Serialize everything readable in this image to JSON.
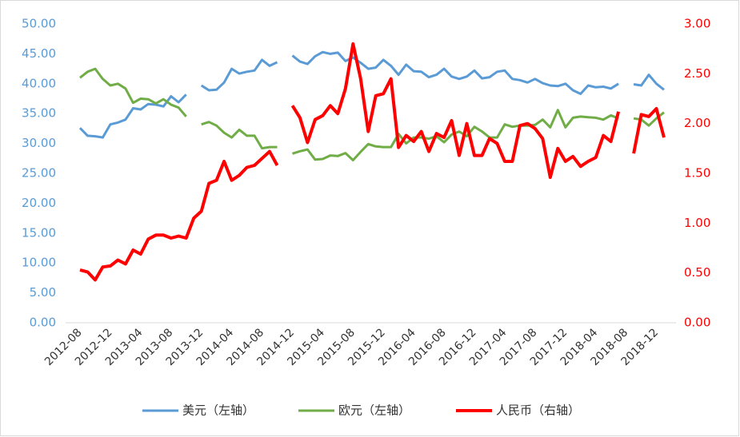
{
  "chart_data": {
    "type": "line",
    "categories": [
      "2012-08",
      null,
      null,
      null,
      "2012-12",
      null,
      null,
      null,
      "2013-04",
      null,
      null,
      null,
      "2013-08",
      null,
      null,
      null,
      "2013-12",
      null,
      null,
      null,
      "2014-04",
      null,
      null,
      null,
      "2014-08",
      null,
      null,
      null,
      "2014-12",
      null,
      null,
      null,
      "2015-04",
      null,
      null,
      null,
      "2015-08",
      null,
      null,
      null,
      "2015-12",
      null,
      null,
      null,
      "2016-04",
      null,
      null,
      null,
      "2016-08",
      null,
      null,
      null,
      "2016-12",
      null,
      null,
      null,
      "2017-04",
      null,
      null,
      null,
      "2017-08",
      null,
      null,
      null,
      "2017-12",
      null,
      null,
      null,
      "2018-04",
      null,
      null,
      null,
      "2018-08",
      null,
      null,
      null,
      "2018-12",
      null
    ],
    "series": [
      {
        "name": "美元（左轴）",
        "color": "#5b9bd5",
        "values": [
          32.6,
          31.3,
          31.2,
          31.0,
          33.2,
          33.5,
          34.0,
          35.9,
          35.7,
          36.6,
          36.5,
          36.2,
          37.9,
          36.9,
          38.2,
          null,
          39.7,
          38.9,
          39.0,
          40.2,
          42.5,
          41.7,
          42.0,
          42.2,
          44.0,
          43.0,
          43.6,
          null,
          44.7,
          43.7,
          43.3,
          44.6,
          45.3,
          45.0,
          45.2,
          43.8,
          44.4,
          43.5,
          42.5,
          42.7,
          44.0,
          43.0,
          41.5,
          43.2,
          42.1,
          42.0,
          41.1,
          41.5,
          42.5,
          41.2,
          40.8,
          41.2,
          42.2,
          40.9,
          41.1,
          42.0,
          42.2,
          40.8,
          40.6,
          40.2,
          40.8,
          40.1,
          39.7,
          39.6,
          40.0,
          38.9,
          38.3,
          39.7,
          39.4,
          39.5,
          39.2,
          40.0,
          null,
          39.9,
          39.7,
          41.5,
          40.0,
          39.0
        ]
      },
      {
        "name": "欧元（左轴）",
        "color": "#70ad47",
        "values": [
          41.0,
          42.0,
          42.5,
          40.8,
          39.7,
          40.0,
          39.2,
          36.8,
          37.5,
          37.4,
          36.7,
          37.4,
          36.5,
          36.0,
          34.5,
          null,
          33.2,
          33.6,
          33.0,
          31.8,
          31.0,
          32.3,
          31.3,
          31.3,
          29.2,
          29.4,
          29.4,
          null,
          28.3,
          28.7,
          29.0,
          27.3,
          27.4,
          28.0,
          27.9,
          28.4,
          27.2,
          28.6,
          29.9,
          29.5,
          29.4,
          29.4,
          31.6,
          30.0,
          31.0,
          31.0,
          30.8,
          31.2,
          30.2,
          31.5,
          32.0,
          31.2,
          32.8,
          32.0,
          31.0,
          31.0,
          33.2,
          32.8,
          33.0,
          33.0,
          33.1,
          34.0,
          32.7,
          35.6,
          32.7,
          34.3,
          34.5,
          34.4,
          34.3,
          34.0,
          34.7,
          34.2,
          null,
          34.2,
          34.0,
          33.0,
          34.2,
          35.2
        ]
      },
      {
        "name": "人民币（右轴）",
        "color": "#ff0000",
        "axis": "y2",
        "values": [
          0.53,
          0.51,
          0.43,
          0.56,
          0.57,
          0.63,
          0.59,
          0.73,
          0.69,
          0.84,
          0.88,
          0.88,
          0.85,
          0.87,
          0.85,
          1.05,
          1.12,
          1.4,
          1.43,
          1.62,
          1.43,
          1.48,
          1.56,
          1.58,
          1.65,
          1.72,
          1.58,
          null,
          2.18,
          2.06,
          1.81,
          2.04,
          2.08,
          2.18,
          2.1,
          2.35,
          2.8,
          2.45,
          1.92,
          2.28,
          2.3,
          2.45,
          1.76,
          1.88,
          1.82,
          1.92,
          1.72,
          1.9,
          1.86,
          2.03,
          1.68,
          2.0,
          1.68,
          1.68,
          1.85,
          1.8,
          1.62,
          1.62,
          1.98,
          2.0,
          1.95,
          1.85,
          1.46,
          1.75,
          1.62,
          1.67,
          1.57,
          1.62,
          1.66,
          1.88,
          1.82,
          2.12,
          null,
          1.7,
          2.09,
          2.07,
          2.15,
          1.86
        ]
      }
    ],
    "ylim": [
      0,
      50
    ],
    "yticks": [
      {
        "value": 0,
        "label": "0.00"
      },
      {
        "value": 5,
        "label": "5.00"
      },
      {
        "value": 10,
        "label": "10.00"
      },
      {
        "value": 15,
        "label": "15.00"
      },
      {
        "value": 20,
        "label": "20.00"
      },
      {
        "value": 25,
        "label": "25.00"
      },
      {
        "value": 30,
        "label": "30.00"
      },
      {
        "value": 35,
        "label": "35.00"
      },
      {
        "value": 40,
        "label": "40.00"
      },
      {
        "value": 45,
        "label": "45.00"
      },
      {
        "value": 50,
        "label": "50.00"
      }
    ],
    "y2lim": [
      0,
      3
    ],
    "y2ticks": [
      {
        "value": 0,
        "label": "0.00"
      },
      {
        "value": 0.5,
        "label": "0.50"
      },
      {
        "value": 1,
        "label": "1.00"
      },
      {
        "value": 1.5,
        "label": "1.50"
      },
      {
        "value": 2,
        "label": "2.00"
      },
      {
        "value": 2.5,
        "label": "2.50"
      },
      {
        "value": 3,
        "label": "3.00"
      }
    ],
    "legend": "bottom"
  }
}
